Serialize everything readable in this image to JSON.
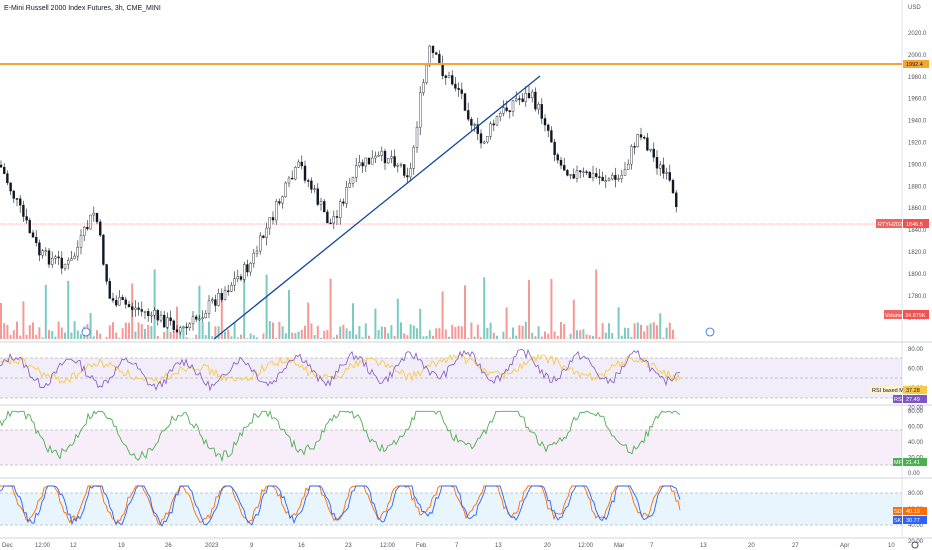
{
  "header": {
    "title": "E-Mini Russell 2000 Index Futures, 3h, CME_MINI"
  },
  "axis": {
    "currency": "USD"
  },
  "colors": {
    "up": "#26a69a",
    "down": "#ef5350",
    "candle": "#131722",
    "resistance": "#f7a532",
    "trendline": "#0d47a1",
    "rsi": "#7e57c2",
    "rsi_ma": "#f7c948",
    "mfi": "#4caf50",
    "stoch_k": "#2962ff",
    "stoch_d": "#ff6d00",
    "price_tag": "#ef5350"
  },
  "price_panel": {
    "ticks": [
      "2020.0",
      "2000.0",
      "1980.0",
      "1960.0",
      "1940.0",
      "1920.0",
      "1900.0",
      "1880.0",
      "1860.0",
      "1840.0",
      "1820.0",
      "1800.0",
      "1780.0",
      "1760.0"
    ],
    "resistance_value": 1992.4,
    "resistance_label": "1992.4",
    "current_label": "RTYH2023",
    "current_value_label": "1846.5",
    "volume_label": "Volume",
    "volume_value": "34.879K"
  },
  "rsi_panel": {
    "ticks": [
      "80.00",
      "60.00",
      "40.00",
      "20.00"
    ],
    "ma_label": "RSI based MA",
    "ma_value": "37.28",
    "rsi_label": "RSI",
    "rsi_value": "27.49"
  },
  "mfi_panel": {
    "ticks": [
      "80.00",
      "60.00",
      "40.00",
      "20.00",
      "0.00"
    ],
    "label": "MF",
    "value": "21.41"
  },
  "stoch_panel": {
    "ticks": [
      "80.00",
      "60.00",
      "40.00",
      "20.00"
    ],
    "d_label": "SD",
    "d_value": "40.19",
    "k_label": "SK",
    "k_value": "30.77"
  },
  "x_axis": {
    "labels": [
      "Dec",
      "12:00",
      "12",
      "19",
      "26",
      "2023",
      "9",
      "16",
      "23",
      "12:00",
      "Feb",
      "7",
      "13",
      "20",
      "12:00",
      "Mar",
      "7",
      "13",
      "20",
      "27",
      "Apr",
      "10"
    ]
  },
  "chart_data": [
    {
      "type": "candlestick",
      "title": "E-Mini Russell 2000 Index Futures, 3h, CME_MINI",
      "ylabel": "USD",
      "ylim": [
        1750,
        2025
      ],
      "key_levels": {
        "resistance": 1992.4,
        "last": 1846.5
      },
      "trendline": {
        "from": [
          1752,
          "2023-01-05"
        ],
        "to": [
          1980,
          "2023-02-16"
        ]
      },
      "approx_close_path": [
        [
          "Dec start",
          1892
        ],
        [
          "Dec mid",
          1810
        ],
        [
          "Dec late",
          1770
        ],
        [
          "2023",
          1780
        ],
        [
          "Jan 9",
          1835
        ],
        [
          "Jan 16",
          1878
        ],
        [
          "Jan 23",
          1868
        ],
        [
          "Feb 1",
          1915
        ],
        [
          "Feb 2",
          2015
        ],
        [
          "Feb 7",
          1975
        ],
        [
          "Feb 13",
          1915
        ],
        [
          "Feb 16",
          1968
        ],
        [
          "Feb 20",
          1920
        ],
        [
          "Mar 1",
          1900
        ],
        [
          "Mar 7",
          1935
        ],
        [
          "Mar 10",
          1846.5
        ]
      ]
    },
    {
      "type": "bar",
      "name": "Volume",
      "last": "34.879K"
    },
    {
      "type": "line",
      "name": "RSI",
      "ylim": [
        0,
        100
      ],
      "bands": [
        30,
        70
      ],
      "last": 27.49
    },
    {
      "type": "line",
      "name": "RSI based MA",
      "ylim": [
        0,
        100
      ],
      "last": 37.28
    },
    {
      "type": "line",
      "name": "MF",
      "ylim": [
        0,
        100
      ],
      "bands": [
        20,
        80
      ],
      "last": 21.41
    },
    {
      "type": "line",
      "name": "Stoch",
      "ylim": [
        0,
        100
      ],
      "bands": [
        20,
        80
      ],
      "last_k": 30.77,
      "last_d": 40.19
    }
  ]
}
